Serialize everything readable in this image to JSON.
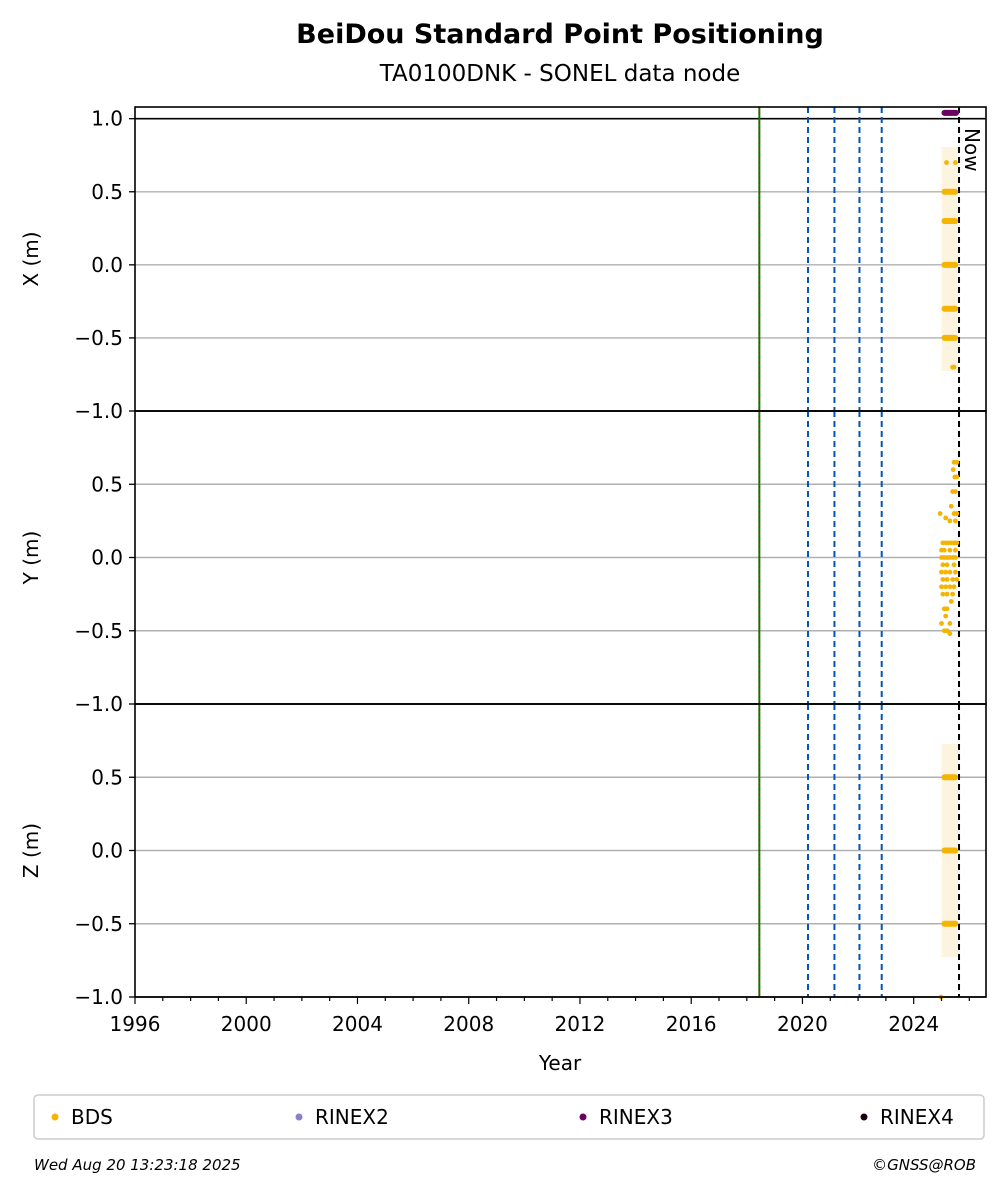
{
  "title": "BeiDou Standard Point Positioning",
  "subtitle": "TA0100DNK - SONEL data node",
  "footer": {
    "timestamp": "Wed Aug 20 13:23:18 2025",
    "credit": "©GNSS@ROB"
  },
  "now_label": "Now",
  "colors": {
    "BDS": "#f5b400",
    "BDS_band": "#fdf1d8",
    "RINEX2": "#8a7fc8",
    "RINEX3": "#6a005f",
    "RINEX4": "#1a0010",
    "event_line": "#0057b8",
    "install_line_green": "#008000",
    "install_line_red": "#e00000"
  },
  "chart_data": {
    "type": "scatter",
    "xlabel": "Year",
    "xlim": [
      1996,
      2026.6
    ],
    "x_ticks": [
      1996,
      2000,
      2004,
      2008,
      2012,
      2016,
      2020,
      2024
    ],
    "x_tick_labels": [
      "1996",
      "2000",
      "2004",
      "2008",
      "2012",
      "2016",
      "2020",
      "2024"
    ],
    "grid": "horizontal",
    "legend": {
      "position": "bottom",
      "entries": [
        "BDS",
        "RINEX2",
        "RINEX3",
        "RINEX4"
      ]
    },
    "vertical_lines": {
      "install": 2018.45,
      "events": [
        2020.2,
        2021.15,
        2022.05,
        2022.85
      ],
      "now": 2025.63
    },
    "rinex3_segment": {
      "x_start": 2025.0,
      "x_end": 2025.63,
      "y": 1.04,
      "panel": "X"
    },
    "panels": [
      {
        "name": "X",
        "ylabel": "X (m)",
        "ylim": [
          -1.0,
          1.08
        ],
        "y_ticks": [
          1.0,
          0.5,
          0.0,
          -0.5,
          -1.0
        ],
        "y_tick_labels": [
          "1.0",
          "0.5",
          "0.0",
          "−0.5",
          "−1.0"
        ],
        "bds_band": [
          2025.0,
          2025.6
        ],
        "bds_clusters": [
          {
            "y": 0.5,
            "x_start": 2025.0,
            "x_end": 2025.6
          },
          {
            "y": 0.3,
            "x_start": 2025.0,
            "x_end": 2025.6
          },
          {
            "y": 0.0,
            "x_start": 2025.0,
            "x_end": 2025.6
          },
          {
            "y": -0.3,
            "x_start": 2025.0,
            "x_end": 2025.6
          },
          {
            "y": -0.5,
            "x_start": 2025.0,
            "x_end": 2025.6
          }
        ],
        "bds_points": [
          [
            2025.18,
            0.7
          ],
          [
            2025.5,
            0.7
          ],
          [
            2025.4,
            -0.7
          ],
          [
            2025.45,
            -0.7
          ]
        ]
      },
      {
        "name": "Y",
        "ylabel": "Y (m)",
        "ylim": [
          -1.0,
          1.0
        ],
        "y_ticks": [
          0.5,
          0.0,
          -0.5,
          -1.0
        ],
        "y_tick_labels": [
          "0.5",
          "0.0",
          "−0.5",
          "−1.0"
        ],
        "bds_band": null,
        "bds_clusters": [],
        "bds_points": [
          [
            2025.45,
            0.65
          ],
          [
            2025.55,
            0.65
          ],
          [
            2025.42,
            0.6
          ],
          [
            2025.48,
            0.55
          ],
          [
            2025.55,
            0.55
          ],
          [
            2025.4,
            0.45
          ],
          [
            2025.5,
            0.45
          ],
          [
            2025.35,
            0.35
          ],
          [
            2025.45,
            0.3
          ],
          [
            2025.55,
            0.3
          ],
          [
            2024.95,
            0.3
          ],
          [
            2025.15,
            0.27
          ],
          [
            2025.3,
            0.25
          ],
          [
            2025.5,
            0.25
          ],
          [
            2025.05,
            0.1
          ],
          [
            2025.15,
            0.1
          ],
          [
            2025.25,
            0.1
          ],
          [
            2025.35,
            0.1
          ],
          [
            2025.45,
            0.1
          ],
          [
            2025.55,
            0.1
          ],
          [
            2025.0,
            0.05
          ],
          [
            2025.1,
            0.05
          ],
          [
            2025.3,
            0.05
          ],
          [
            2025.5,
            0.05
          ],
          [
            2025.0,
            0.0
          ],
          [
            2025.1,
            0.0
          ],
          [
            2025.2,
            0.0
          ],
          [
            2025.3,
            0.0
          ],
          [
            2025.4,
            0.0
          ],
          [
            2025.5,
            0.0
          ],
          [
            2025.05,
            -0.05
          ],
          [
            2025.2,
            -0.05
          ],
          [
            2025.45,
            -0.05
          ],
          [
            2025.0,
            -0.1
          ],
          [
            2025.15,
            -0.1
          ],
          [
            2025.3,
            -0.1
          ],
          [
            2025.5,
            -0.1
          ],
          [
            2025.05,
            -0.15
          ],
          [
            2025.2,
            -0.15
          ],
          [
            2025.4,
            -0.15
          ],
          [
            2025.55,
            -0.15
          ],
          [
            2025.0,
            -0.2
          ],
          [
            2025.15,
            -0.2
          ],
          [
            2025.3,
            -0.2
          ],
          [
            2025.45,
            -0.2
          ],
          [
            2025.05,
            -0.25
          ],
          [
            2025.2,
            -0.25
          ],
          [
            2025.4,
            -0.25
          ],
          [
            2025.35,
            -0.3
          ],
          [
            2025.1,
            -0.35
          ],
          [
            2025.2,
            -0.35
          ],
          [
            2025.15,
            -0.4
          ],
          [
            2025.0,
            -0.45
          ],
          [
            2025.3,
            -0.45
          ],
          [
            2025.1,
            -0.5
          ],
          [
            2025.2,
            -0.5
          ],
          [
            2025.3,
            -0.52
          ]
        ]
      },
      {
        "name": "Z",
        "ylabel": "Z (m)",
        "ylim": [
          -1.0,
          1.0
        ],
        "y_ticks": [
          0.5,
          0.0,
          -0.5,
          -1.0
        ],
        "y_tick_labels": [
          "0.5",
          "0.0",
          "−0.5",
          "−1.0"
        ],
        "bds_band": [
          2025.0,
          2025.6
        ],
        "bds_clusters": [
          {
            "y": 0.5,
            "x_start": 2025.0,
            "x_end": 2025.6
          },
          {
            "y": 0.0,
            "x_start": 2025.0,
            "x_end": 2025.6
          },
          {
            "y": -0.5,
            "x_start": 2025.0,
            "x_end": 2025.6
          }
        ],
        "bds_points": [
          [
            2024.98,
            -1.0
          ]
        ]
      }
    ]
  }
}
